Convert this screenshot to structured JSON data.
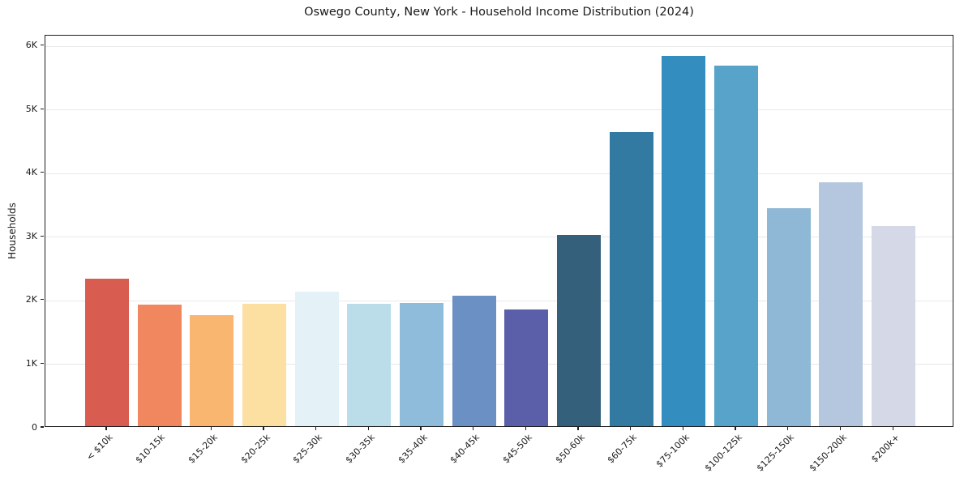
{
  "title": "Oswego County, New York - Household Income Distribution (2024)",
  "chart_data": {
    "type": "bar",
    "title": "Oswego County, New York - Household Income Distribution (2024)",
    "xlabel": "",
    "ylabel": "Households",
    "categories": [
      "< $10k",
      "$10-15k",
      "$15-20k",
      "$20-25k",
      "$25-30k",
      "$30-35k",
      "$35-40k",
      "$40-45k",
      "$45-50k",
      "$50-60k",
      "$60-75k",
      "$75-100k",
      "$100-125k",
      "$125-150k",
      "$150-200k",
      "$200k+"
    ],
    "values": [
      2320,
      1910,
      1740,
      1920,
      2110,
      1920,
      1930,
      2050,
      1830,
      3000,
      4620,
      5820,
      5660,
      3420,
      3830,
      3150
    ],
    "bar_colors": [
      "#d85c50",
      "#f0875f",
      "#f8b671",
      "#fce0a2",
      "#e4f1f6",
      "#badde9",
      "#8fbcdb",
      "#6b90c4",
      "#5b5ea8",
      "#34607b",
      "#337aa2",
      "#348dbf",
      "#58a3c9",
      "#8fb8d6",
      "#b4c7de",
      "#d5d8e6"
    ],
    "ylim": [
      0,
      6160
    ],
    "yticks": [
      {
        "value": 0,
        "label": "0"
      },
      {
        "value": 1000,
        "label": "1K"
      },
      {
        "value": 2000,
        "label": "2K"
      },
      {
        "value": 3000,
        "label": "3K"
      },
      {
        "value": 4000,
        "label": "4K"
      },
      {
        "value": 5000,
        "label": "5K"
      },
      {
        "value": 6000,
        "label": "6K"
      }
    ],
    "grid": "horizontal",
    "legend": "none",
    "frame_color": "#1f1f1f",
    "gridline_color": "#e8e8e8"
  }
}
